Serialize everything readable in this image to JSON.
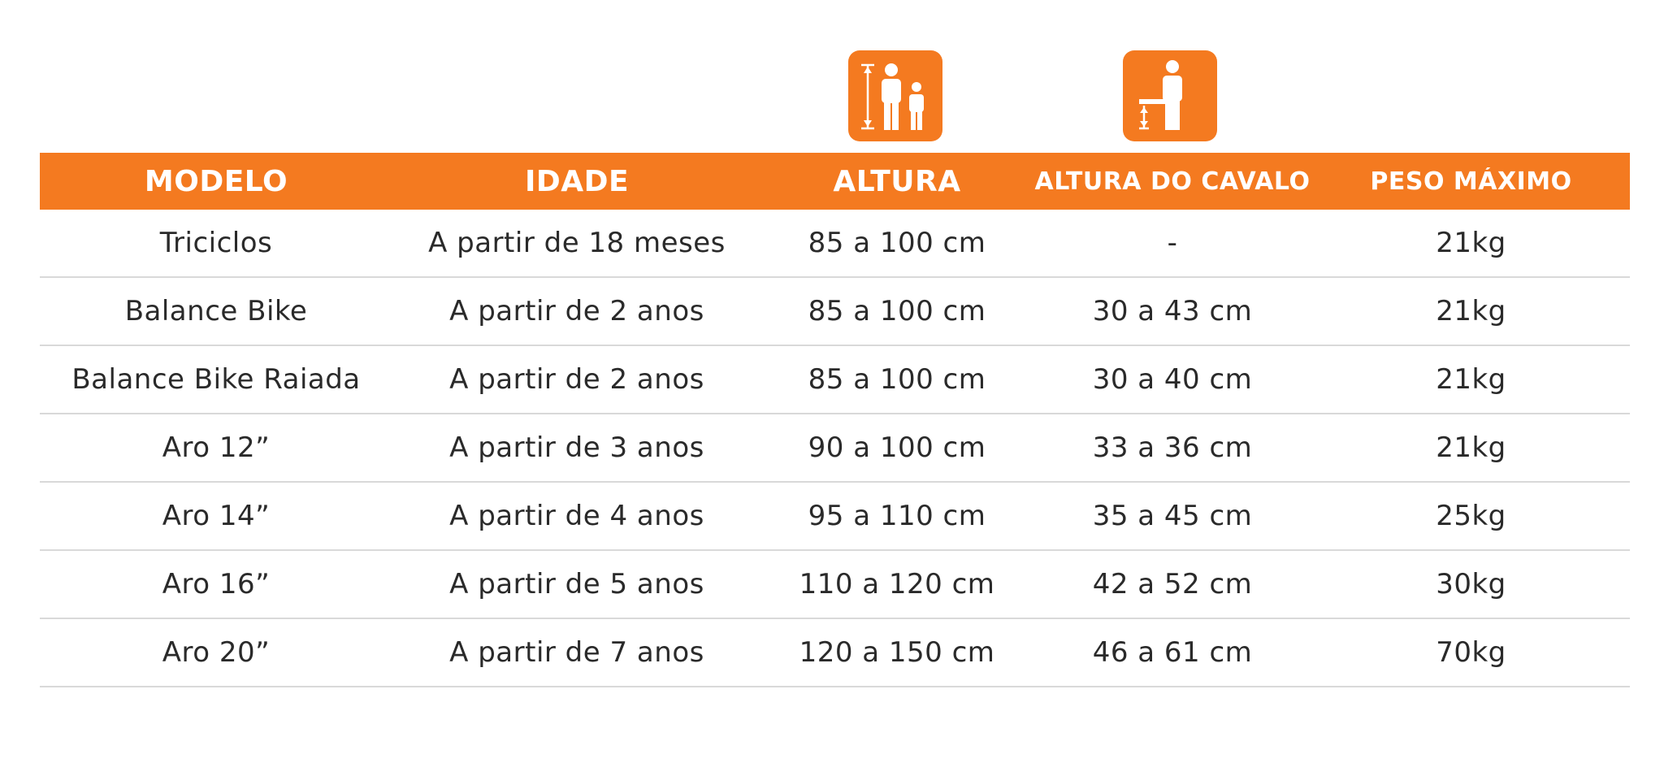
{
  "icons": [
    {
      "name": "adult-child-height-icon",
      "color": "#f47a20"
    },
    {
      "name": "inseam-height-icon",
      "color": "#f47a20"
    }
  ],
  "colors": {
    "accent": "#f47a20",
    "header_text": "#ffffff",
    "body_text": "#2a2a2a",
    "row_divider": "#d9d9d9"
  },
  "table": {
    "headers": [
      "MODELO",
      "IDADE",
      "ALTURA",
      "ALTURA DO CAVALO",
      "PESO MÁXIMO"
    ],
    "rows": [
      [
        "Triciclos",
        "A partir de 18 meses",
        "85 a 100 cm",
        "-",
        "21kg"
      ],
      [
        "Balance Bike",
        "A partir de 2 anos",
        "85 a 100 cm",
        "30 a 43 cm",
        "21kg"
      ],
      [
        "Balance Bike Raiada",
        "A partir de 2 anos",
        "85 a 100 cm",
        "30 a 40 cm",
        "21kg"
      ],
      [
        "Aro 12”",
        "A partir de 3 anos",
        "90 a 100 cm",
        "33 a 36 cm",
        "21kg"
      ],
      [
        "Aro 14”",
        "A partir de 4 anos",
        "95 a 110 cm",
        "35 a 45 cm",
        "25kg"
      ],
      [
        "Aro 16”",
        "A partir de 5 anos",
        "110 a 120 cm",
        "42 a 52 cm",
        "30kg"
      ],
      [
        "Aro 20”",
        "A partir de 7 anos",
        "120 a 150 cm",
        "46 a 61 cm",
        "70kg"
      ]
    ]
  }
}
